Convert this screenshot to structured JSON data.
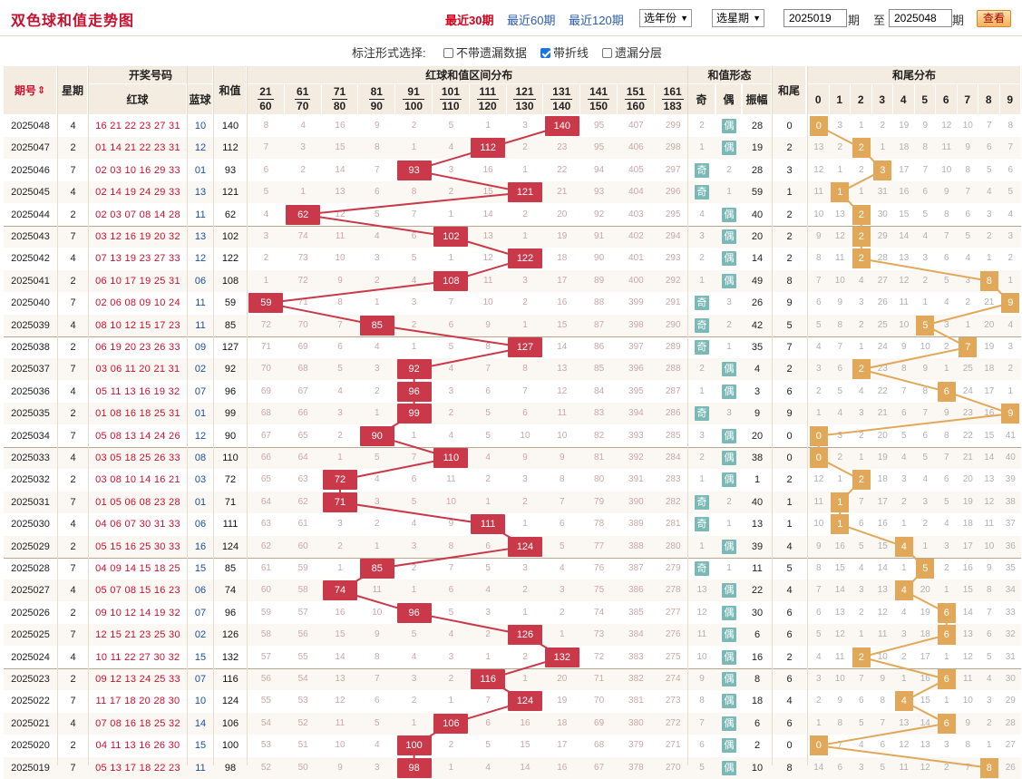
{
  "header": {
    "title": "双色球和值走势图",
    "periods": [
      "最近30期",
      "最近60期",
      "最近120期"
    ],
    "active_period": 0,
    "year_select": "选年份",
    "week_select": "选星期",
    "from_term": "2025019",
    "to_term": "2025048",
    "term_label": "期",
    "to_label": "至",
    "query_label": "查看"
  },
  "options": {
    "label": "标注形式选择:",
    "items": [
      {
        "label": "不带遗漏数据",
        "checked": false
      },
      {
        "label": "带折线",
        "checked": true
      },
      {
        "label": "遗漏分层",
        "checked": false
      }
    ]
  },
  "table_header": {
    "term": "期号",
    "sort_icon": "sort-icon",
    "week": "星期",
    "draw_group": "开奖号码",
    "red": "红球",
    "blue": "蓝球",
    "sum": "和值",
    "range_group": "红球和值区间分布",
    "ranges": [
      [
        "21",
        "60"
      ],
      [
        "61",
        "70"
      ],
      [
        "71",
        "80"
      ],
      [
        "81",
        "90"
      ],
      [
        "91",
        "100"
      ],
      [
        "101",
        "110"
      ],
      [
        "111",
        "120"
      ],
      [
        "121",
        "130"
      ],
      [
        "131",
        "140"
      ],
      [
        "141",
        "150"
      ],
      [
        "151",
        "160"
      ],
      [
        "161",
        "183"
      ]
    ],
    "shape_group": "和值形态",
    "odd": "奇",
    "even": "偶",
    "amp": "振幅",
    "tail": "和尾",
    "tail_group": "和尾分布",
    "digits": [
      "0",
      "1",
      "2",
      "3",
      "4",
      "5",
      "6",
      "7",
      "8",
      "9"
    ]
  },
  "rows": [
    {
      "term": "2025048",
      "week": "4",
      "red": "16 21 22 23 27 31",
      "blue": "10",
      "sum": "140",
      "range": 8,
      "miss": [
        "8",
        "4",
        "16",
        "9",
        "2",
        "5",
        "1",
        "3",
        "",
        "95",
        "407",
        "299"
      ],
      "odd": "2",
      "even": "偶",
      "oe": "even",
      "amp": "28",
      "tail": "0",
      "tailmiss": [
        "",
        "3",
        "1",
        "2",
        "19",
        "9",
        "12",
        "10",
        "7",
        "8"
      ]
    },
    {
      "term": "2025047",
      "week": "2",
      "red": "01 14 21 22 23 31",
      "blue": "12",
      "sum": "112",
      "range": 6,
      "miss": [
        "7",
        "3",
        "15",
        "8",
        "1",
        "4",
        "",
        "2",
        "23",
        "95",
        "406",
        "298"
      ],
      "odd": "1",
      "even": "偶",
      "oe": "even",
      "amp": "19",
      "tail": "2",
      "tailmiss": [
        "13",
        "2",
        "",
        "1",
        "18",
        "8",
        "11",
        "9",
        "6",
        "7"
      ]
    },
    {
      "term": "2025046",
      "week": "7",
      "red": "02 03 10 16 29 33",
      "blue": "01",
      "sum": "93",
      "range": 4,
      "miss": [
        "6",
        "2",
        "14",
        "7",
        "",
        "3",
        "16",
        "1",
        "22",
        "94",
        "405",
        "297"
      ],
      "odd": "奇",
      "even": "2",
      "oe": "odd",
      "amp": "28",
      "tail": "3",
      "tailmiss": [
        "12",
        "1",
        "2",
        "",
        "17",
        "7",
        "10",
        "8",
        "5",
        "6"
      ]
    },
    {
      "term": "2025045",
      "week": "4",
      "red": "02 14 19 24 29 33",
      "blue": "13",
      "sum": "121",
      "range": 7,
      "miss": [
        "5",
        "1",
        "13",
        "6",
        "8",
        "2",
        "15",
        "",
        "21",
        "93",
        "404",
        "296"
      ],
      "odd": "奇",
      "even": "1",
      "oe": "odd",
      "amp": "59",
      "tail": "1",
      "tailmiss": [
        "11",
        "",
        "1",
        "31",
        "16",
        "6",
        "9",
        "7",
        "4",
        "5"
      ]
    },
    {
      "term": "2025044",
      "week": "2",
      "red": "02 03 07 08 14 28",
      "blue": "11",
      "sum": "62",
      "range": 1,
      "miss": [
        "4",
        "",
        "12",
        "5",
        "7",
        "1",
        "14",
        "2",
        "20",
        "92",
        "403",
        "295"
      ],
      "odd": "4",
      "even": "偶",
      "oe": "even",
      "amp": "40",
      "tail": "2",
      "tailmiss": [
        "10",
        "13",
        "",
        "30",
        "15",
        "5",
        "8",
        "6",
        "3",
        "4"
      ]
    },
    {
      "term": "2025043",
      "week": "7",
      "red": "03 12 16 19 20 32",
      "blue": "13",
      "sum": "102",
      "range": 5,
      "miss": [
        "3",
        "74",
        "11",
        "4",
        "6",
        "",
        "13",
        "1",
        "19",
        "91",
        "402",
        "294"
      ],
      "odd": "3",
      "even": "偶",
      "oe": "even",
      "amp": "20",
      "tail": "2",
      "tailmiss": [
        "9",
        "12",
        "",
        "29",
        "14",
        "4",
        "7",
        "5",
        "2",
        "3"
      ]
    },
    {
      "term": "2025042",
      "week": "4",
      "red": "07 13 19 23 27 33",
      "blue": "12",
      "sum": "122",
      "range": 7,
      "miss": [
        "2",
        "73",
        "10",
        "3",
        "5",
        "1",
        "12",
        "",
        "18",
        "90",
        "401",
        "293"
      ],
      "odd": "2",
      "even": "偶",
      "oe": "even",
      "amp": "14",
      "tail": "2",
      "tailmiss": [
        "8",
        "11",
        "",
        "28",
        "13",
        "3",
        "6",
        "4",
        "1",
        "2"
      ]
    },
    {
      "term": "2025041",
      "week": "2",
      "red": "06 10 17 19 25 31",
      "blue": "06",
      "sum": "108",
      "range": 5,
      "miss": [
        "1",
        "72",
        "9",
        "2",
        "4",
        "",
        "11",
        "3",
        "17",
        "89",
        "400",
        "292"
      ],
      "odd": "1",
      "even": "偶",
      "oe": "even",
      "amp": "49",
      "tail": "8",
      "tailmiss": [
        "7",
        "10",
        "4",
        "27",
        "12",
        "2",
        "5",
        "3",
        "",
        "1"
      ]
    },
    {
      "term": "2025040",
      "week": "7",
      "red": "02 06 08 09 10 24",
      "blue": "11",
      "sum": "59",
      "range": 0,
      "miss": [
        "",
        "71",
        "8",
        "1",
        "3",
        "7",
        "10",
        "2",
        "16",
        "88",
        "399",
        "291"
      ],
      "odd": "奇",
      "even": "3",
      "oe": "odd",
      "amp": "26",
      "tail": "9",
      "tailmiss": [
        "6",
        "9",
        "3",
        "26",
        "11",
        "1",
        "4",
        "2",
        "21",
        ""
      ]
    },
    {
      "term": "2025039",
      "week": "4",
      "red": "08 10 12 15 17 23",
      "blue": "11",
      "sum": "85",
      "range": 3,
      "miss": [
        "72",
        "70",
        "7",
        "",
        "2",
        "6",
        "9",
        "1",
        "15",
        "87",
        "398",
        "290"
      ],
      "odd": "奇",
      "even": "2",
      "oe": "odd",
      "amp": "42",
      "tail": "5",
      "tailmiss": [
        "5",
        "8",
        "2",
        "25",
        "10",
        "",
        "3",
        "1",
        "20",
        "4"
      ]
    },
    {
      "term": "2025038",
      "week": "2",
      "red": "06 19 20 23 26 33",
      "blue": "09",
      "sum": "127",
      "range": 7,
      "miss": [
        "71",
        "69",
        "6",
        "4",
        "1",
        "5",
        "8",
        "",
        "14",
        "86",
        "397",
        "289"
      ],
      "odd": "奇",
      "even": "1",
      "oe": "odd",
      "amp": "35",
      "tail": "7",
      "tailmiss": [
        "4",
        "7",
        "1",
        "24",
        "9",
        "10",
        "2",
        "",
        "19",
        "3"
      ]
    },
    {
      "term": "2025037",
      "week": "7",
      "red": "03 06 11 20 21 31",
      "blue": "02",
      "sum": "92",
      "range": 4,
      "miss": [
        "70",
        "68",
        "5",
        "3",
        "",
        "4",
        "7",
        "8",
        "13",
        "85",
        "396",
        "288"
      ],
      "odd": "2",
      "even": "偶",
      "oe": "even",
      "amp": "4",
      "tail": "2",
      "tailmiss": [
        "3",
        "6",
        "",
        "23",
        "8",
        "9",
        "1",
        "25",
        "18",
        "2"
      ]
    },
    {
      "term": "2025036",
      "week": "4",
      "red": "05 11 13 16 19 32",
      "blue": "07",
      "sum": "96",
      "range": 4,
      "miss": [
        "69",
        "67",
        "4",
        "2",
        "",
        "3",
        "6",
        "7",
        "12",
        "84",
        "395",
        "287"
      ],
      "odd": "1",
      "even": "偶",
      "oe": "even",
      "amp": "3",
      "tail": "6",
      "tailmiss": [
        "2",
        "5",
        "4",
        "22",
        "7",
        "8",
        "",
        "24",
        "17",
        "1"
      ]
    },
    {
      "term": "2025035",
      "week": "2",
      "red": "01 08 16 18 25 31",
      "blue": "01",
      "sum": "99",
      "range": 4,
      "miss": [
        "68",
        "66",
        "3",
        "1",
        "",
        "2",
        "5",
        "6",
        "11",
        "83",
        "394",
        "286"
      ],
      "odd": "奇",
      "even": "3",
      "oe": "odd",
      "amp": "9",
      "tail": "9",
      "tailmiss": [
        "1",
        "4",
        "3",
        "21",
        "6",
        "7",
        "9",
        "23",
        "16",
        ""
      ]
    },
    {
      "term": "2025034",
      "week": "7",
      "red": "05 08 13 14 24 26",
      "blue": "12",
      "sum": "90",
      "range": 3,
      "miss": [
        "67",
        "65",
        "2",
        "",
        "1",
        "4",
        "5",
        "10",
        "10",
        "82",
        "393",
        "285"
      ],
      "odd": "3",
      "even": "偶",
      "oe": "even",
      "amp": "20",
      "tail": "0",
      "tailmiss": [
        "",
        "3",
        "2",
        "20",
        "5",
        "6",
        "8",
        "22",
        "15",
        "41"
      ]
    },
    {
      "term": "2025033",
      "week": "4",
      "red": "03 05 18 25 26 33",
      "blue": "08",
      "sum": "110",
      "range": 5,
      "miss": [
        "66",
        "64",
        "1",
        "5",
        "7",
        "",
        "4",
        "9",
        "9",
        "81",
        "392",
        "284"
      ],
      "odd": "2",
      "even": "偶",
      "oe": "even",
      "amp": "38",
      "tail": "0",
      "tailmiss": [
        "",
        "2",
        "1",
        "19",
        "4",
        "5",
        "7",
        "21",
        "14",
        "40"
      ]
    },
    {
      "term": "2025032",
      "week": "2",
      "red": "03 08 10 14 16 21",
      "blue": "03",
      "sum": "72",
      "range": 2,
      "miss": [
        "65",
        "63",
        "",
        "4",
        "6",
        "11",
        "2",
        "3",
        "8",
        "80",
        "391",
        "283"
      ],
      "odd": "1",
      "even": "偶",
      "oe": "even",
      "amp": "1",
      "tail": "2",
      "tailmiss": [
        "12",
        "1",
        "",
        "18",
        "3",
        "4",
        "6",
        "20",
        "13",
        "39"
      ]
    },
    {
      "term": "2025031",
      "week": "7",
      "red": "01 05 06 08 23 28",
      "blue": "01",
      "sum": "71",
      "range": 2,
      "miss": [
        "64",
        "62",
        "",
        "3",
        "5",
        "10",
        "1",
        "2",
        "7",
        "79",
        "390",
        "282"
      ],
      "odd": "奇",
      "even": "2",
      "oe": "odd",
      "amp": "40",
      "tail": "1",
      "tailmiss": [
        "11",
        "",
        "7",
        "17",
        "2",
        "3",
        "5",
        "19",
        "12",
        "38"
      ]
    },
    {
      "term": "2025030",
      "week": "4",
      "red": "04 06 07 30 31 33",
      "blue": "06",
      "sum": "111",
      "range": 6,
      "miss": [
        "63",
        "61",
        "3",
        "2",
        "4",
        "9",
        "",
        "1",
        "6",
        "78",
        "389",
        "281"
      ],
      "odd": "奇",
      "even": "1",
      "oe": "odd",
      "amp": "13",
      "tail": "1",
      "tailmiss": [
        "10",
        "",
        "6",
        "16",
        "1",
        "2",
        "4",
        "18",
        "11",
        "37"
      ]
    },
    {
      "term": "2025029",
      "week": "2",
      "red": "05 15 16 25 30 33",
      "blue": "16",
      "sum": "124",
      "range": 7,
      "miss": [
        "62",
        "60",
        "2",
        "1",
        "3",
        "8",
        "6",
        "",
        "5",
        "77",
        "388",
        "280"
      ],
      "odd": "1",
      "even": "偶",
      "oe": "even",
      "amp": "39",
      "tail": "4",
      "tailmiss": [
        "9",
        "16",
        "5",
        "15",
        "",
        "1",
        "3",
        "17",
        "10",
        "36"
      ]
    },
    {
      "term": "2025028",
      "week": "7",
      "red": "04 09 14 15 18 25",
      "blue": "15",
      "sum": "85",
      "range": 3,
      "miss": [
        "61",
        "59",
        "1",
        "",
        "2",
        "7",
        "5",
        "3",
        "4",
        "76",
        "387",
        "279"
      ],
      "odd": "奇",
      "even": "1",
      "oe": "odd",
      "amp": "11",
      "tail": "5",
      "tailmiss": [
        "8",
        "15",
        "4",
        "14",
        "1",
        "",
        "2",
        "16",
        "9",
        "35"
      ]
    },
    {
      "term": "2025027",
      "week": "4",
      "red": "05 07 08 15 16 23",
      "blue": "06",
      "sum": "74",
      "range": 2,
      "miss": [
        "60",
        "58",
        "",
        "11",
        "1",
        "6",
        "4",
        "2",
        "3",
        "75",
        "386",
        "278"
      ],
      "odd": "13",
      "even": "偶",
      "oe": "even",
      "amp": "22",
      "tail": "4",
      "tailmiss": [
        "7",
        "14",
        "3",
        "13",
        "",
        "20",
        "1",
        "15",
        "8",
        "34"
      ]
    },
    {
      "term": "2025026",
      "week": "2",
      "red": "09 10 12 14 19 32",
      "blue": "07",
      "sum": "96",
      "range": 4,
      "miss": [
        "59",
        "57",
        "16",
        "10",
        "",
        "5",
        "3",
        "1",
        "2",
        "74",
        "385",
        "277"
      ],
      "odd": "12",
      "even": "偶",
      "oe": "even",
      "amp": "30",
      "tail": "6",
      "tailmiss": [
        "6",
        "13",
        "2",
        "12",
        "4",
        "19",
        "",
        "14",
        "7",
        "33"
      ]
    },
    {
      "term": "2025025",
      "week": "7",
      "red": "12 15 21 23 25 30",
      "blue": "02",
      "sum": "126",
      "range": 7,
      "miss": [
        "58",
        "56",
        "15",
        "9",
        "5",
        "4",
        "2",
        "",
        "1",
        "73",
        "384",
        "276"
      ],
      "odd": "11",
      "even": "偶",
      "oe": "even",
      "amp": "6",
      "tail": "6",
      "tailmiss": [
        "5",
        "12",
        "1",
        "11",
        "3",
        "18",
        "",
        "13",
        "6",
        "32"
      ]
    },
    {
      "term": "2025024",
      "week": "4",
      "red": "10 11 22 27 30 32",
      "blue": "15",
      "sum": "132",
      "range": 8,
      "miss": [
        "57",
        "55",
        "14",
        "8",
        "4",
        "3",
        "1",
        "2",
        "",
        "72",
        "383",
        "275"
      ],
      "odd": "10",
      "even": "偶",
      "oe": "even",
      "amp": "16",
      "tail": "2",
      "tailmiss": [
        "4",
        "11",
        "",
        "10",
        "2",
        "17",
        "1",
        "12",
        "5",
        "31"
      ]
    },
    {
      "term": "2025023",
      "week": "2",
      "red": "09 12 13 24 25 33",
      "blue": "07",
      "sum": "116",
      "range": 6,
      "miss": [
        "56",
        "54",
        "13",
        "7",
        "3",
        "2",
        "",
        "1",
        "20",
        "71",
        "382",
        "274"
      ],
      "odd": "9",
      "even": "偶",
      "oe": "even",
      "amp": "8",
      "tail": "6",
      "tailmiss": [
        "3",
        "10",
        "7",
        "9",
        "1",
        "16",
        "",
        "11",
        "4",
        "30"
      ]
    },
    {
      "term": "2025022",
      "week": "7",
      "red": "11 17 18 20 28 30",
      "blue": "10",
      "sum": "124",
      "range": 7,
      "miss": [
        "55",
        "53",
        "12",
        "6",
        "2",
        "1",
        "7",
        "",
        "19",
        "70",
        "381",
        "273"
      ],
      "odd": "8",
      "even": "偶",
      "oe": "even",
      "amp": "18",
      "tail": "4",
      "tailmiss": [
        "2",
        "9",
        "6",
        "8",
        "",
        "15",
        "1",
        "10",
        "3",
        "29"
      ]
    },
    {
      "term": "2025021",
      "week": "4",
      "red": "07 08 16 18 25 32",
      "blue": "14",
      "sum": "106",
      "range": 5,
      "miss": [
        "54",
        "52",
        "11",
        "5",
        "1",
        "",
        "6",
        "16",
        "18",
        "69",
        "380",
        "272"
      ],
      "odd": "7",
      "even": "偶",
      "oe": "even",
      "amp": "6",
      "tail": "6",
      "tailmiss": [
        "1",
        "8",
        "5",
        "7",
        "13",
        "14",
        "",
        "9",
        "2",
        "28"
      ]
    },
    {
      "term": "2025020",
      "week": "2",
      "red": "04 11 13 16 26 30",
      "blue": "15",
      "sum": "100",
      "range": 4,
      "miss": [
        "53",
        "51",
        "10",
        "4",
        "",
        "2",
        "5",
        "15",
        "17",
        "68",
        "379",
        "271"
      ],
      "odd": "6",
      "even": "偶",
      "oe": "even",
      "amp": "2",
      "tail": "0",
      "tailmiss": [
        "",
        "7",
        "4",
        "6",
        "12",
        "13",
        "3",
        "8",
        "1",
        "27"
      ]
    },
    {
      "term": "2025019",
      "week": "7",
      "red": "05 13 17 18 22 23",
      "blue": "11",
      "sum": "98",
      "range": 4,
      "miss": [
        "52",
        "50",
        "9",
        "3",
        "",
        "1",
        "4",
        "14",
        "16",
        "67",
        "378",
        "270"
      ],
      "odd": "5",
      "even": "偶",
      "oe": "even",
      "amp": "10",
      "tail": "8",
      "tailmiss": [
        "14",
        "6",
        "3",
        "5",
        "11",
        "12",
        "2",
        "7",
        "",
        "26"
      ]
    }
  ],
  "colors": {
    "hit_red": "#c9394a",
    "hit_tail": "#e2a85a",
    "shape_tag": "#7ab9b6",
    "title_red": "#c8102e",
    "link_blue": "#2a5db0",
    "header_bg": "#f4ece0"
  }
}
